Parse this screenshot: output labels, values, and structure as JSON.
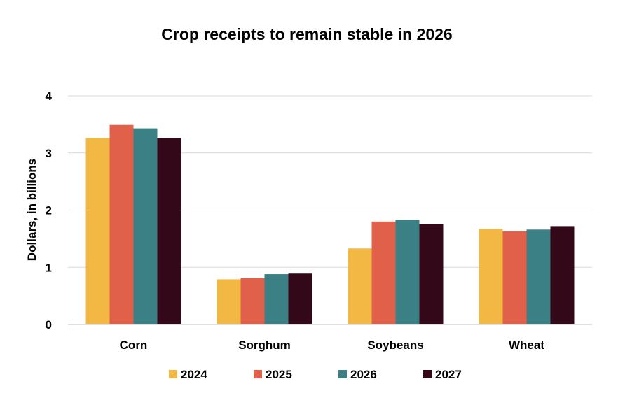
{
  "chart_data": {
    "type": "bar",
    "title": "Crop receipts to remain stable in 2026",
    "ylabel": "Dollars, in billions",
    "xlabel": "",
    "ylim": [
      0,
      4
    ],
    "yticks": [
      0,
      1,
      2,
      3,
      4
    ],
    "grid": true,
    "legend_position": "bottom",
    "categories": [
      "Corn",
      "Sorghum",
      "Soybeans",
      "Wheat"
    ],
    "series": [
      {
        "name": "2024",
        "color": "#F2B843",
        "values": [
          3.26,
          0.79,
          1.33,
          1.67
        ]
      },
      {
        "name": "2025",
        "color": "#E0604A",
        "values": [
          3.49,
          0.81,
          1.8,
          1.63
        ]
      },
      {
        "name": "2026",
        "color": "#3A8084",
        "values": [
          3.43,
          0.88,
          1.83,
          1.66
        ]
      },
      {
        "name": "2027",
        "color": "#330919",
        "values": [
          3.26,
          0.89,
          1.76,
          1.72
        ]
      }
    ]
  }
}
